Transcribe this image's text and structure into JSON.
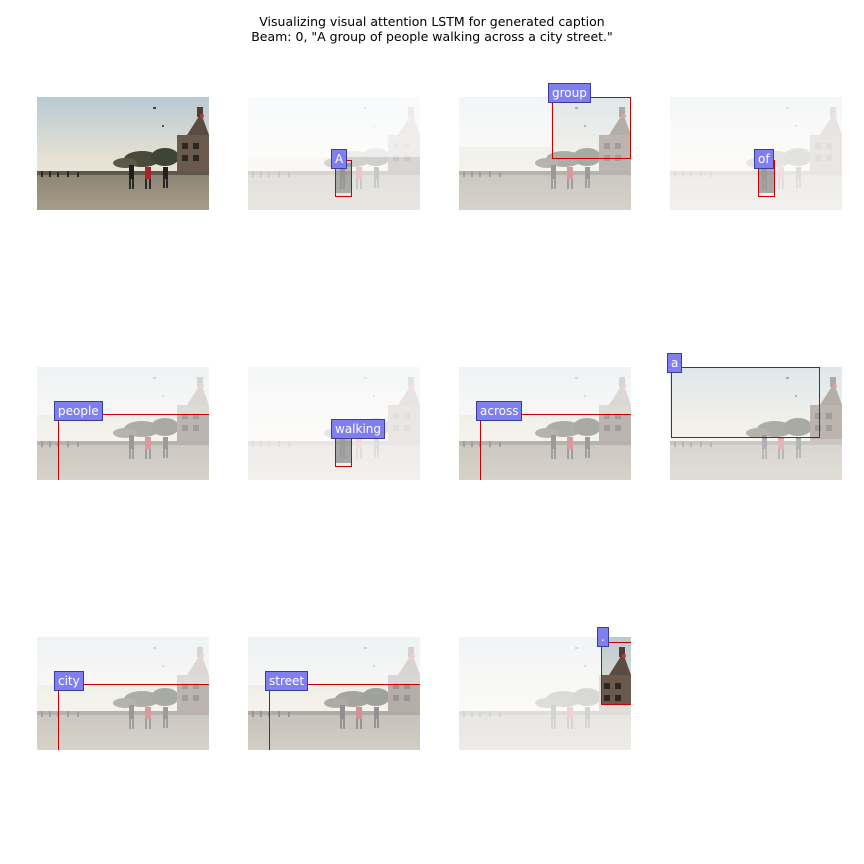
{
  "title": {
    "line1": "Visualizing visual attention LSTM for generated caption",
    "line2": "Beam: 0, \"A group of people walking across a city street.\""
  },
  "panels": [
    {
      "label": ""
    },
    {
      "label": "A"
    },
    {
      "label": "group"
    },
    {
      "label": "of"
    },
    {
      "label": "people"
    },
    {
      "label": "walking"
    },
    {
      "label": "across"
    },
    {
      "label": "a"
    },
    {
      "label": "city"
    },
    {
      "label": "street"
    },
    {
      "label": "."
    }
  ],
  "colors": {
    "box_outline": "#cc0000",
    "label_fill": "#7f7ff0",
    "label_border": "#3b3b9a"
  }
}
